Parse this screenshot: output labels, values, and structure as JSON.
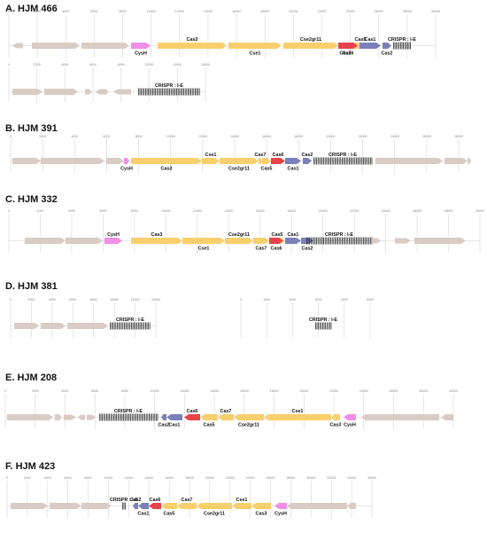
{
  "colors": {
    "grey": "#d8ccc4",
    "yellow": "#f8cf6d",
    "red": "#e8424a",
    "purple": "#7b80bc",
    "pink": "#ef8fe5",
    "array": "#333333",
    "grid": "#d6d6d6"
  },
  "panels": [
    {
      "title": "A. HJM 466",
      "rows": [
        {
          "axis": [
            "0",
            "2000",
            "4000",
            "6000",
            "8000",
            "10000",
            "12000",
            "14000",
            "16000",
            "18000",
            "20000",
            "22000",
            "24000",
            "26000",
            "28000",
            "30000"
          ],
          "features": [
            {
              "kind": "grey",
              "dir": "l",
              "small": true
            },
            {
              "kind": "grey",
              "dir": "r"
            },
            {
              "kind": "grey",
              "dir": "r"
            },
            {
              "kind": "pink",
              "dir": "r",
              "label": "CysH",
              "pos": "below"
            },
            {
              "kind": "yellow",
              "dir": "r",
              "label": "Cas3",
              "pos": "above"
            },
            {
              "kind": "yellow",
              "dir": "r",
              "label": "Cse1",
              "pos": "below"
            },
            {
              "kind": "yellow",
              "dir": "r",
              "label": "Cse2gr11",
              "pos": "above"
            },
            {
              "kind": "yellow",
              "dir": "r",
              "label": "Cas7",
              "pos": "below"
            },
            {
              "kind": "yellow",
              "dir": "r",
              "label": "Cas5",
              "pos": "above"
            },
            {
              "kind": "red",
              "dir": "r",
              "label": "Cas6",
              "pos": "below"
            },
            {
              "kind": "purple",
              "dir": "r",
              "label": "Cas1",
              "pos": "above"
            },
            {
              "kind": "purple",
              "dir": "r",
              "label": "Cas2",
              "pos": "below"
            },
            {
              "kind": "array",
              "label": "CRISPR : I-E",
              "pos": "above"
            }
          ]
        },
        {
          "axis": [
            "0",
            "2000",
            "4000",
            "6000",
            "8000",
            "10000",
            "12000",
            "14000"
          ],
          "features": [
            {
              "kind": "grey",
              "dir": "r"
            },
            {
              "kind": "grey",
              "dir": "r"
            },
            {
              "kind": "grey",
              "dir": "r",
              "small": true
            },
            {
              "kind": "grey",
              "dir": "l",
              "small": true
            },
            {
              "kind": "grey",
              "dir": "r",
              "small": true
            },
            {
              "kind": "grey",
              "dir": "l",
              "small": true
            },
            {
              "kind": "array",
              "label": "CRISPR : I-E",
              "pos": "above"
            }
          ]
        }
      ]
    },
    {
      "title": "B. HJM 391",
      "rows": [
        {
          "axis": [
            "0",
            "2000",
            "4000",
            "6000",
            "8000",
            "10000",
            "12000",
            "14000",
            "16000",
            "18000",
            "20000",
            "22000",
            "24000",
            "26000",
            "28000"
          ],
          "features": [
            {
              "kind": "grey",
              "dir": "r"
            },
            {
              "kind": "grey",
              "dir": "r"
            },
            {
              "kind": "grey",
              "dir": "r"
            },
            {
              "kind": "pink",
              "dir": "r",
              "label": "CysH",
              "pos": "below"
            },
            {
              "kind": "yellow",
              "dir": "r",
              "label": "Cas3",
              "pos": "below"
            },
            {
              "kind": "yellow",
              "dir": "r",
              "label": "Cse1",
              "pos": "above"
            },
            {
              "kind": "yellow",
              "dir": "r",
              "label": "Cse2gr11",
              "pos": "below"
            },
            {
              "kind": "yellow",
              "dir": "r",
              "label": "Cas7",
              "pos": "above"
            },
            {
              "kind": "yellow",
              "dir": "r",
              "label": "Cas5",
              "pos": "below"
            },
            {
              "kind": "red",
              "dir": "r",
              "label": "Cas6",
              "pos": "above"
            },
            {
              "kind": "purple",
              "dir": "r",
              "label": "Cas1",
              "pos": "below"
            },
            {
              "kind": "purple",
              "dir": "r",
              "label": "Cas2",
              "pos": "above"
            },
            {
              "kind": "array",
              "label": "CRISPR : I-E",
              "pos": "above"
            },
            {
              "kind": "grey",
              "dir": "r"
            },
            {
              "kind": "grey",
              "dir": "r"
            },
            {
              "kind": "grey",
              "dir": "r"
            }
          ]
        }
      ]
    },
    {
      "title": "C. HJM 332",
      "rows": [
        {
          "axis": [
            "0",
            "2000",
            "4000",
            "6000",
            "8000",
            "10000",
            "12000",
            "14000",
            "16000",
            "18000",
            "20000",
            "22000",
            "24000",
            "26000",
            "28000",
            "30000"
          ],
          "features": [
            {
              "kind": "grey",
              "dir": "r"
            },
            {
              "kind": "grey",
              "dir": "r"
            },
            {
              "kind": "pink",
              "dir": "r",
              "label": "CysH",
              "pos": "above"
            },
            {
              "kind": "yellow",
              "dir": "r",
              "label": "Cas3",
              "pos": "above"
            },
            {
              "kind": "yellow",
              "dir": "r",
              "label": "Cse1",
              "pos": "below"
            },
            {
              "kind": "yellow",
              "dir": "r",
              "label": "Cse2gr11",
              "pos": "above"
            },
            {
              "kind": "yellow",
              "dir": "r",
              "label": "Cas7",
              "pos": "below"
            },
            {
              "kind": "yellow",
              "dir": "r",
              "label": "Cas5",
              "pos": "above"
            },
            {
              "kind": "red",
              "dir": "r",
              "label": "Cas6",
              "pos": "below"
            },
            {
              "kind": "purple",
              "dir": "r",
              "label": "Cas1",
              "pos": "above"
            },
            {
              "kind": "purple",
              "dir": "r",
              "label": "Cas2",
              "pos": "below"
            },
            {
              "kind": "array",
              "label": "CRISPR : I-E",
              "pos": "above"
            },
            {
              "kind": "grey",
              "dir": "r",
              "small": true
            },
            {
              "kind": "grey",
              "dir": "r",
              "small": true
            },
            {
              "kind": "grey",
              "dir": "r"
            }
          ]
        }
      ]
    },
    {
      "title": "D. HJM 381",
      "rows": [
        {
          "axis": [
            "0",
            "2000",
            "4000",
            "6000",
            "8000",
            "10000",
            "12000",
            "14000"
          ],
          "features": [
            {
              "kind": "grey",
              "dir": "r"
            },
            {
              "kind": "grey",
              "dir": "r"
            },
            {
              "kind": "grey",
              "dir": "r"
            },
            {
              "kind": "array",
              "label": "CRISPR : I-E",
              "pos": "above"
            }
          ],
          "second": {
            "axis": [
              "0",
              "1000",
              "2000",
              "3000",
              "4000",
              "5000"
            ],
            "features": [
              {
                "kind": "array",
                "label": "CRISPR : I-E",
                "pos": "above"
              }
            ]
          }
        }
      ]
    },
    {
      "title": "E. HJM 208",
      "rows": [
        {
          "axis": [
            "0",
            "2000",
            "4000",
            "6000",
            "8000",
            "10000",
            "12000",
            "14000",
            "16000",
            "18000",
            "20000",
            "22000",
            "24000",
            "26000",
            "28000",
            "30000"
          ],
          "features": [
            {
              "kind": "grey",
              "dir": "r"
            },
            {
              "kind": "grey",
              "dir": "r"
            },
            {
              "kind": "grey",
              "dir": "r",
              "small": true
            },
            {
              "kind": "grey",
              "dir": "l",
              "small": true
            },
            {
              "kind": "grey",
              "dir": "r",
              "small": true
            },
            {
              "kind": "array",
              "label": "CRISPR : I-E",
              "pos": "above"
            },
            {
              "kind": "purple",
              "dir": "l",
              "label": "Cas2",
              "pos": "below"
            },
            {
              "kind": "purple",
              "dir": "l",
              "label": "Cas1",
              "pos": "below"
            },
            {
              "kind": "red",
              "dir": "l",
              "label": "Cas6",
              "pos": "above"
            },
            {
              "kind": "yellow",
              "dir": "l",
              "label": "Cas5",
              "pos": "below"
            },
            {
              "kind": "yellow",
              "dir": "l",
              "label": "Cas7",
              "pos": "above"
            },
            {
              "kind": "yellow",
              "dir": "l",
              "label": "Cse2gr11",
              "pos": "below"
            },
            {
              "kind": "yellow",
              "dir": "l",
              "label": "Cse1",
              "pos": "above"
            },
            {
              "kind": "yellow",
              "dir": "l",
              "label": "Cas3",
              "pos": "below"
            },
            {
              "kind": "pink",
              "dir": "l",
              "label": "CysH",
              "pos": "below"
            },
            {
              "kind": "grey",
              "dir": "l"
            },
            {
              "kind": "grey",
              "dir": "l"
            }
          ]
        }
      ]
    },
    {
      "title": "F. HJM 423",
      "rows": [
        {
          "axis": [
            "0",
            "2000",
            "4000",
            "6000",
            "8000",
            "10000",
            "12000",
            "14000",
            "16000",
            "18000",
            "20000",
            "22000",
            "24000",
            "26000",
            "28000",
            "30000",
            "32000",
            "34000",
            "36000"
          ],
          "features": [
            {
              "kind": "grey",
              "dir": "r"
            },
            {
              "kind": "grey",
              "dir": "r"
            },
            {
              "kind": "grey",
              "dir": "r"
            },
            {
              "kind": "array",
              "label": "CRISPR : I-E",
              "pos": "above"
            },
            {
              "kind": "purple",
              "dir": "l",
              "label": "Cas2",
              "pos": "above"
            },
            {
              "kind": "purple",
              "dir": "l",
              "label": "Cas1",
              "pos": "below"
            },
            {
              "kind": "red",
              "dir": "l",
              "label": "Cas6",
              "pos": "above"
            },
            {
              "kind": "yellow",
              "dir": "l",
              "label": "Cas5",
              "pos": "below"
            },
            {
              "kind": "yellow",
              "dir": "l",
              "label": "Cas7",
              "pos": "above"
            },
            {
              "kind": "yellow",
              "dir": "l",
              "label": "Cse2gr11",
              "pos": "below"
            },
            {
              "kind": "yellow",
              "dir": "l",
              "label": "Cse1",
              "pos": "above"
            },
            {
              "kind": "yellow",
              "dir": "l",
              "label": "Cas3",
              "pos": "below"
            },
            {
              "kind": "pink",
              "dir": "l",
              "label": "CysH",
              "pos": "below"
            },
            {
              "kind": "grey",
              "dir": "l"
            },
            {
              "kind": "grey",
              "dir": "l"
            }
          ]
        }
      ]
    }
  ]
}
